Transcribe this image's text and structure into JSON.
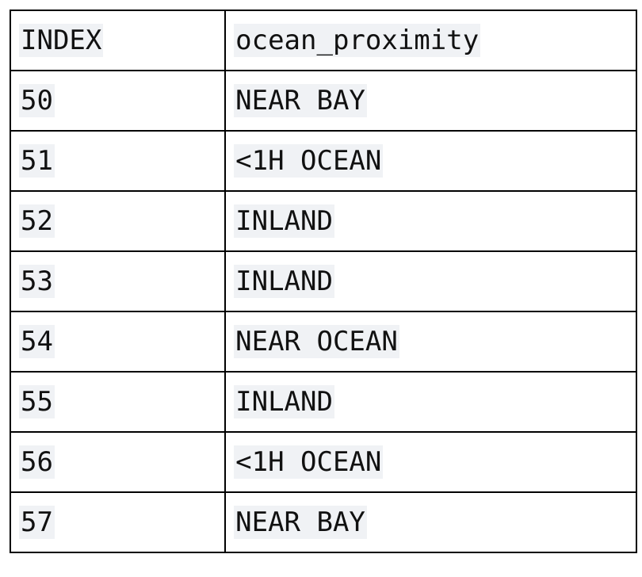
{
  "table": {
    "columns": [
      "INDEX",
      "ocean_proximity"
    ],
    "rows": [
      [
        "50",
        "NEAR BAY"
      ],
      [
        "51",
        "<1H OCEAN"
      ],
      [
        "52",
        "INLAND"
      ],
      [
        "53",
        "INLAND"
      ],
      [
        "54",
        "NEAR OCEAN"
      ],
      [
        "55",
        "INLAND"
      ],
      [
        "56",
        "<1H OCEAN"
      ],
      [
        "57",
        "NEAR BAY"
      ]
    ]
  }
}
